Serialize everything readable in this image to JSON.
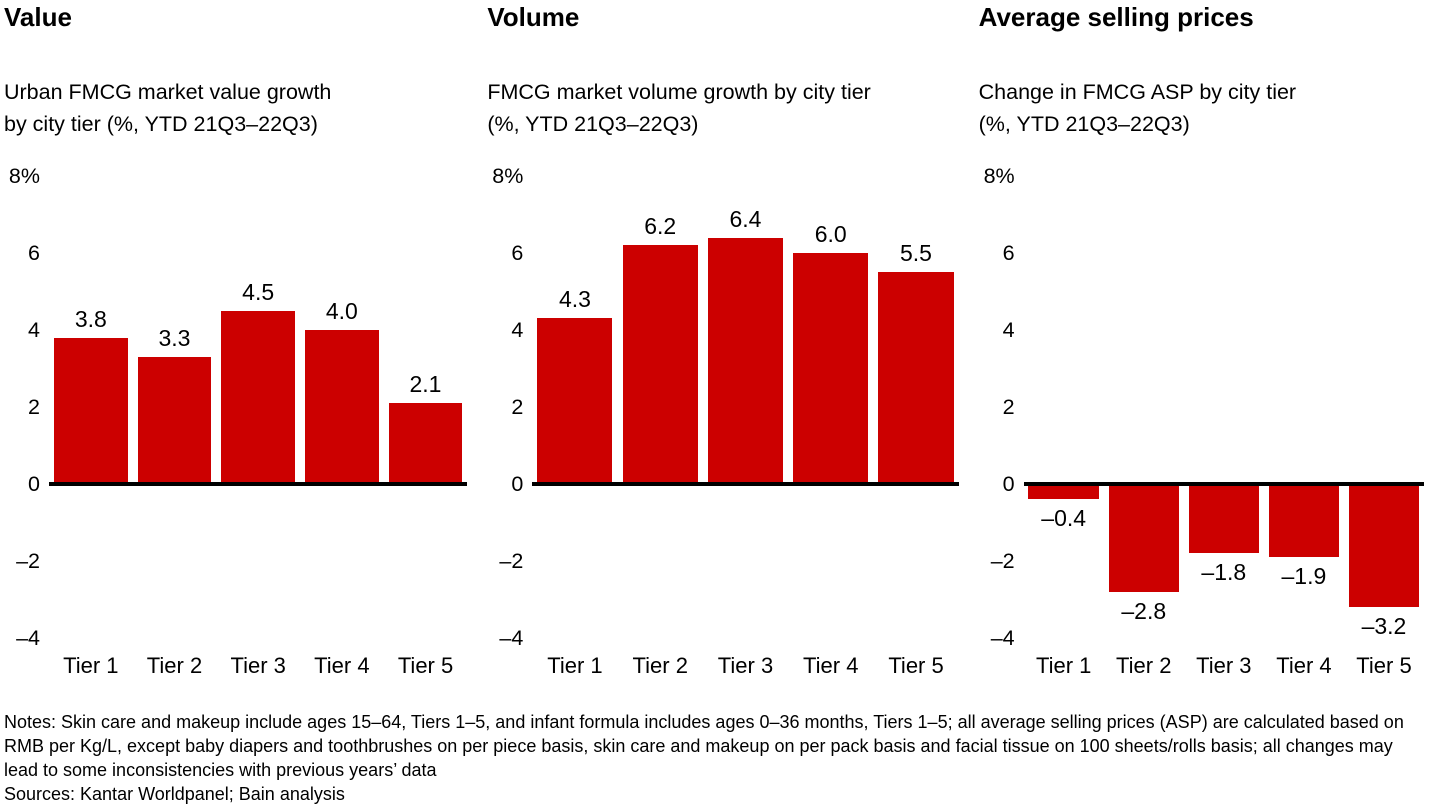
{
  "accent_color": "#CC0000",
  "axis_color": "#000000",
  "chart_data": [
    {
      "type": "bar",
      "title": "Value",
      "subtitle": "Urban FMCG market value growth\nby city tier (%, YTD 21Q3–22Q3)",
      "unit": "%",
      "categories": [
        "Tier 1",
        "Tier 2",
        "Tier 3",
        "Tier 4",
        "Tier 5"
      ],
      "values": [
        3.8,
        3.3,
        4.5,
        4.0,
        2.1
      ],
      "value_labels": [
        "3.8",
        "3.3",
        "4.5",
        "4.0",
        "2.1"
      ],
      "ylim": [
        -4,
        8
      ],
      "yticks": [
        {
          "value": 8,
          "label": "8%"
        },
        {
          "value": 6,
          "label": "6"
        },
        {
          "value": 4,
          "label": "4"
        },
        {
          "value": 2,
          "label": "2"
        },
        {
          "value": 0,
          "label": "0"
        },
        {
          "value": -2,
          "label": "–2"
        },
        {
          "value": -4,
          "label": "–4"
        }
      ],
      "bar_color": "#CC0000",
      "grid": false,
      "legend": "none"
    },
    {
      "type": "bar",
      "title": "Volume",
      "subtitle": "FMCG market volume growth by city tier\n(%, YTD 21Q3–22Q3)",
      "unit": "%",
      "categories": [
        "Tier 1",
        "Tier 2",
        "Tier 3",
        "Tier 4",
        "Tier 5"
      ],
      "values": [
        4.3,
        6.2,
        6.4,
        6.0,
        5.5
      ],
      "value_labels": [
        "4.3",
        "6.2",
        "6.4",
        "6.0",
        "5.5"
      ],
      "ylim": [
        -4,
        8
      ],
      "yticks": [
        {
          "value": 8,
          "label": "8%"
        },
        {
          "value": 6,
          "label": "6"
        },
        {
          "value": 4,
          "label": "4"
        },
        {
          "value": 2,
          "label": "2"
        },
        {
          "value": 0,
          "label": "0"
        },
        {
          "value": -2,
          "label": "–2"
        },
        {
          "value": -4,
          "label": "–4"
        }
      ],
      "bar_color": "#CC0000",
      "grid": false,
      "legend": "none"
    },
    {
      "type": "bar",
      "title": "Average selling prices",
      "subtitle": "Change in FMCG ASP by city tier\n(%, YTD 21Q3–22Q3)",
      "unit": "%",
      "categories": [
        "Tier 1",
        "Tier 2",
        "Tier 3",
        "Tier 4",
        "Tier 5"
      ],
      "values": [
        -0.4,
        -2.8,
        -1.8,
        -1.9,
        -3.2
      ],
      "value_labels": [
        "–0.4",
        "–2.8",
        "–1.8",
        "–1.9",
        "–3.2"
      ],
      "ylim": [
        -4,
        8
      ],
      "yticks": [
        {
          "value": 8,
          "label": "8%"
        },
        {
          "value": 6,
          "label": "6"
        },
        {
          "value": 4,
          "label": "4"
        },
        {
          "value": 2,
          "label": "2"
        },
        {
          "value": 0,
          "label": "0"
        },
        {
          "value": -2,
          "label": "–2"
        },
        {
          "value": -4,
          "label": "–4"
        }
      ],
      "bar_color": "#CC0000",
      "grid": false,
      "legend": "none"
    }
  ],
  "footer": {
    "notes": "Notes: Skin care and makeup include ages 15–64, Tiers 1–5, and infant formula includes ages 0–36 months, Tiers 1–5; all average selling prices (ASP) are calculated based on RMB per Kg/L, except baby diapers and toothbrushes on per piece basis, skin care and makeup on per pack basis and facial tissue on 100 sheets/rolls basis; all changes may lead to some inconsistencies with previous years’ data",
    "sources": "Sources: Kantar Worldpanel; Bain analysis"
  }
}
